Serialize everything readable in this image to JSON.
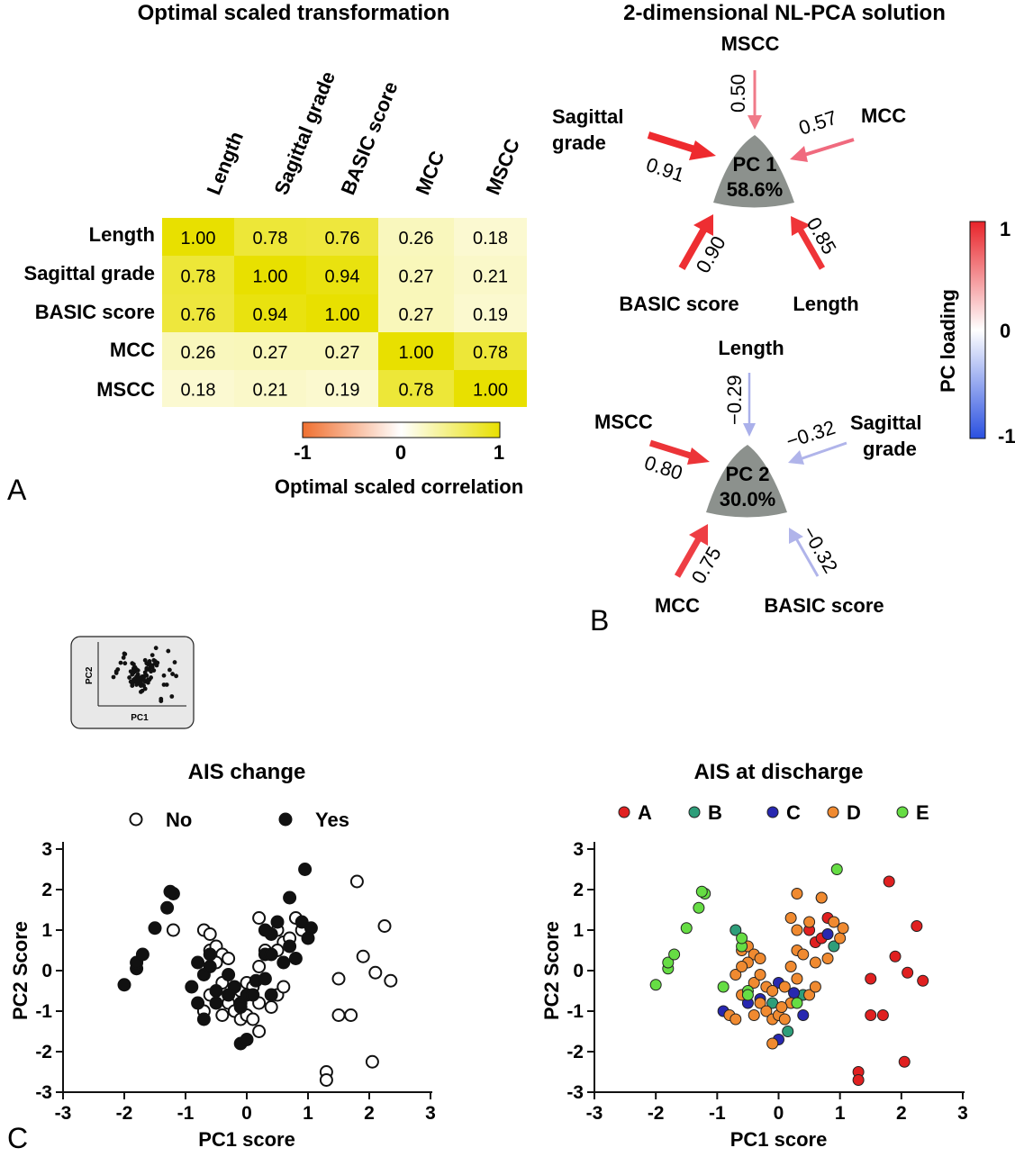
{
  "panel_a": {
    "letter": "A",
    "title": "Optimal scaled transformation",
    "variables": [
      "Length",
      "Sagittal grade",
      "BASIC score",
      "MCC",
      "MSCC"
    ],
    "matrix": [
      [
        "1.00",
        "0.78",
        "0.76",
        "0.26",
        "0.18"
      ],
      [
        "0.78",
        "1.00",
        "0.94",
        "0.27",
        "0.21"
      ],
      [
        "0.76",
        "0.94",
        "1.00",
        "0.27",
        "0.19"
      ],
      [
        "0.26",
        "0.27",
        "0.27",
        "1.00",
        "0.78"
      ],
      [
        "0.18",
        "0.21",
        "0.19",
        "0.78",
        "1.00"
      ]
    ],
    "colorbar": {
      "ticks": [
        "-1",
        "0",
        "1"
      ],
      "label": "Optimal scaled correlation",
      "colors": [
        "#f07030",
        "#ffffff",
        "#e8e000"
      ]
    }
  },
  "panel_b": {
    "letter": "B",
    "title": "2-dimensional NL-PCA solution",
    "pc1": {
      "name": "PC 1",
      "variance": "58.6%",
      "loadings": [
        {
          "variable": "MSCC",
          "value": "0.50"
        },
        {
          "variable": "MCC",
          "value": "0.57"
        },
        {
          "variable": "Sagittal grade",
          "value": "0.91"
        },
        {
          "variable": "BASIC score",
          "value": "0.90"
        },
        {
          "variable": "Length",
          "value": "0.85"
        }
      ]
    },
    "pc2": {
      "name": "PC 2",
      "variance": "30.0%",
      "loadings": [
        {
          "variable": "Length",
          "value": "−0.29"
        },
        {
          "variable": "Sagittal grade",
          "value": "−0.32"
        },
        {
          "variable": "MSCC",
          "value": "0.80"
        },
        {
          "variable": "MCC",
          "value": "0.75"
        },
        {
          "variable": "BASIC score",
          "value": "−0.32"
        }
      ]
    },
    "colorbar": {
      "ticks": [
        "1",
        "0",
        "-1"
      ],
      "label": "PC loading",
      "colors": [
        "#e8242a",
        "#ffffff",
        "#2a50e0"
      ]
    }
  },
  "panel_c": {
    "letter": "C",
    "inset": {
      "xlabel": "PC1",
      "ylabel": "PC2"
    }
  },
  "chart_data": [
    {
      "type": "scatter",
      "title": "AIS change",
      "xlabel": "PC1 score",
      "ylabel": "PC2 Score",
      "xlim": [
        -3,
        3
      ],
      "ylim": [
        -3,
        3
      ],
      "xticks": [
        "-3",
        "-2",
        "-1",
        "0",
        "1",
        "2",
        "3"
      ],
      "yticks": [
        "3",
        "2",
        "1",
        "0",
        "-1",
        "-2",
        "-3"
      ],
      "legend": [
        {
          "name": "No",
          "marker": "open-circle"
        },
        {
          "name": "Yes",
          "marker": "filled-circle"
        }
      ],
      "series": [
        {
          "name": "No",
          "points": [
            [
              -1.2,
              1.0
            ],
            [
              -0.7,
              1.0
            ],
            [
              -0.6,
              0.9
            ],
            [
              -0.6,
              0.5
            ],
            [
              -0.5,
              0.6
            ],
            [
              -0.4,
              0.4
            ],
            [
              -0.5,
              0.2
            ],
            [
              -0.3,
              0.3
            ],
            [
              -0.4,
              -0.3
            ],
            [
              -0.6,
              -0.6
            ],
            [
              -0.3,
              -0.8
            ],
            [
              -0.1,
              -0.5
            ],
            [
              0.0,
              -0.3
            ],
            [
              0.1,
              -0.4
            ],
            [
              -0.2,
              -1.0
            ],
            [
              -0.4,
              -1.1
            ],
            [
              -0.7,
              -1.0
            ],
            [
              -0.1,
              -1.2
            ],
            [
              0.0,
              -1.1
            ],
            [
              0.1,
              -1.2
            ],
            [
              0.2,
              -1.5
            ],
            [
              0.2,
              -0.8
            ],
            [
              0.4,
              -0.9
            ],
            [
              0.5,
              -0.6
            ],
            [
              0.6,
              -0.4
            ],
            [
              0.2,
              0.1
            ],
            [
              0.3,
              0.5
            ],
            [
              0.2,
              1.3
            ],
            [
              0.5,
              1.0
            ],
            [
              0.6,
              0.7
            ],
            [
              0.7,
              0.8
            ],
            [
              0.8,
              1.3
            ],
            [
              0.9,
              1.0
            ],
            [
              0.5,
              0.5
            ],
            [
              1.3,
              -2.5
            ],
            [
              1.3,
              -2.7
            ],
            [
              1.5,
              -0.2
            ],
            [
              1.5,
              -1.1
            ],
            [
              1.7,
              -1.1
            ],
            [
              1.8,
              2.2
            ],
            [
              1.9,
              0.35
            ],
            [
              2.05,
              -2.25
            ],
            [
              2.1,
              -0.05
            ],
            [
              2.25,
              1.1
            ],
            [
              2.35,
              -0.25
            ]
          ]
        },
        {
          "name": "Yes",
          "points": [
            [
              -2.0,
              -0.35
            ],
            [
              -1.8,
              0.05
            ],
            [
              -1.8,
              0.2
            ],
            [
              -1.7,
              0.4
            ],
            [
              -1.5,
              1.05
            ],
            [
              -1.3,
              1.55
            ],
            [
              -1.2,
              1.9
            ],
            [
              -1.25,
              1.95
            ],
            [
              -0.9,
              -0.4
            ],
            [
              -0.8,
              0.2
            ],
            [
              -0.7,
              -0.1
            ],
            [
              -0.6,
              0.1
            ],
            [
              -0.8,
              -0.8
            ],
            [
              -0.7,
              -1.2
            ],
            [
              -0.5,
              -0.5
            ],
            [
              -0.5,
              -0.8
            ],
            [
              -0.3,
              -0.1
            ],
            [
              -0.2,
              -0.4
            ],
            [
              -0.6,
              0.4
            ],
            [
              -0.3,
              -0.6
            ],
            [
              0.0,
              -0.6
            ],
            [
              -0.1,
              -0.8
            ],
            [
              -0.1,
              -0.9
            ],
            [
              0.1,
              -0.6
            ],
            [
              0.15,
              -0.25
            ],
            [
              -0.1,
              -1.8
            ],
            [
              0.0,
              -1.7
            ],
            [
              0.3,
              -0.2
            ],
            [
              0.3,
              0.4
            ],
            [
              0.4,
              0.4
            ],
            [
              0.4,
              0.9
            ],
            [
              0.4,
              -0.6
            ],
            [
              0.6,
              0.2
            ],
            [
              0.8,
              0.3
            ],
            [
              0.7,
              0.6
            ],
            [
              0.7,
              1.8
            ],
            [
              0.9,
              1.2
            ],
            [
              1.0,
              0.8
            ],
            [
              1.05,
              1.05
            ],
            [
              0.95,
              2.5
            ],
            [
              0.3,
              1.0
            ],
            [
              0.5,
              1.2
            ]
          ]
        }
      ]
    },
    {
      "type": "scatter",
      "title": "AIS at discharge",
      "xlabel": "PC1 score",
      "ylabel": "PC2 Score",
      "xlim": [
        -3,
        3
      ],
      "ylim": [
        -3,
        3
      ],
      "xticks": [
        "-3",
        "-2",
        "-1",
        "0",
        "1",
        "2",
        "3"
      ],
      "yticks": [
        "3",
        "2",
        "1",
        "0",
        "-1",
        "-2",
        "-3"
      ],
      "legend": [
        {
          "name": "A",
          "color": "#e02020"
        },
        {
          "name": "B",
          "color": "#2e9e7a"
        },
        {
          "name": "C",
          "color": "#2828b0"
        },
        {
          "name": "D",
          "color": "#f08a30"
        },
        {
          "name": "E",
          "color": "#66dd44"
        }
      ],
      "series": [
        {
          "name": "A",
          "color": "#e02020",
          "points": [
            [
              0.5,
              1.0
            ],
            [
              0.6,
              0.7
            ],
            [
              0.7,
              0.8
            ],
            [
              0.8,
              1.3
            ],
            [
              1.3,
              -2.5
            ],
            [
              1.3,
              -2.7
            ],
            [
              1.5,
              -0.2
            ],
            [
              1.5,
              -1.1
            ],
            [
              1.7,
              -1.1
            ],
            [
              1.8,
              2.2
            ],
            [
              1.9,
              0.35
            ],
            [
              2.05,
              -2.25
            ],
            [
              2.1,
              -0.05
            ],
            [
              2.25,
              1.1
            ],
            [
              2.35,
              -0.25
            ]
          ]
        },
        {
          "name": "B",
          "color": "#2e9e7a",
          "points": [
            [
              -0.7,
              1.0
            ],
            [
              0.15,
              -1.5
            ],
            [
              0.9,
              0.6
            ],
            [
              0.4,
              -0.6
            ],
            [
              -0.1,
              -0.8
            ]
          ]
        },
        {
          "name": "C",
          "color": "#2828b0",
          "points": [
            [
              -0.9,
              -1.0
            ],
            [
              -0.5,
              -0.8
            ],
            [
              -0.3,
              -0.7
            ],
            [
              0.0,
              -0.3
            ],
            [
              0.0,
              -1.7
            ],
            [
              0.25,
              -0.55
            ],
            [
              0.4,
              -1.1
            ],
            [
              0.7,
              1.8
            ],
            [
              0.8,
              0.9
            ]
          ]
        },
        {
          "name": "D",
          "color": "#f08a30",
          "points": [
            [
              -0.8,
              -1.1
            ],
            [
              -0.7,
              -1.2
            ],
            [
              -0.6,
              -0.6
            ],
            [
              -0.6,
              0.5
            ],
            [
              -0.5,
              0.6
            ],
            [
              -0.4,
              0.4
            ],
            [
              -0.5,
              0.2
            ],
            [
              -0.3,
              0.3
            ],
            [
              -0.4,
              -0.3
            ],
            [
              -0.3,
              -0.8
            ],
            [
              -0.2,
              -1.0
            ],
            [
              -0.4,
              -1.1
            ],
            [
              -0.1,
              -1.2
            ],
            [
              0.0,
              -1.1
            ],
            [
              0.1,
              -1.2
            ],
            [
              0.1,
              -0.4
            ],
            [
              0.2,
              -0.8
            ],
            [
              0.5,
              -0.6
            ],
            [
              0.6,
              -0.4
            ],
            [
              0.2,
              0.1
            ],
            [
              0.3,
              0.5
            ],
            [
              0.2,
              1.3
            ],
            [
              0.3,
              1.0
            ],
            [
              0.5,
              1.2
            ],
            [
              0.4,
              0.4
            ],
            [
              0.6,
              0.2
            ],
            [
              0.8,
              0.3
            ],
            [
              0.9,
              1.2
            ],
            [
              1.0,
              0.8
            ],
            [
              1.05,
              1.05
            ],
            [
              -0.1,
              -1.8
            ],
            [
              -0.2,
              -0.4
            ],
            [
              -0.3,
              -0.1
            ],
            [
              0.3,
              -0.2
            ],
            [
              0.7,
              1.8
            ],
            [
              0.3,
              1.9
            ],
            [
              -0.7,
              -0.1
            ],
            [
              -0.6,
              0.1
            ],
            [
              -0.1,
              -0.5
            ],
            [
              0.05,
              -0.9
            ]
          ]
        },
        {
          "name": "E",
          "color": "#66dd44",
          "points": [
            [
              -2.0,
              -0.35
            ],
            [
              -1.8,
              0.05
            ],
            [
              -1.8,
              0.2
            ],
            [
              -1.7,
              0.4
            ],
            [
              -1.5,
              1.05
            ],
            [
              -1.3,
              1.55
            ],
            [
              -1.2,
              1.9
            ],
            [
              -1.25,
              1.95
            ],
            [
              -0.9,
              -0.4
            ],
            [
              -0.6,
              0.6
            ],
            [
              -0.6,
              0.8
            ],
            [
              -0.5,
              -0.5
            ],
            [
              -0.5,
              -0.6
            ],
            [
              0.3,
              -0.8
            ],
            [
              0.95,
              2.5
            ]
          ]
        }
      ]
    }
  ]
}
